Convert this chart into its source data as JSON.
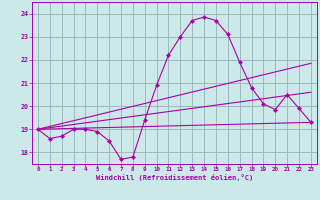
{
  "xlabel": "Windchill (Refroidissement éolien,°C)",
  "background_color": "#cce8e8",
  "line_color": "#aa00aa",
  "grid_color": "#99bbbb",
  "xlim": [
    -0.5,
    23.5
  ],
  "ylim": [
    17.5,
    24.5
  ],
  "xticks": [
    0,
    1,
    2,
    3,
    4,
    5,
    6,
    7,
    8,
    9,
    10,
    11,
    12,
    13,
    14,
    15,
    16,
    17,
    18,
    19,
    20,
    21,
    22,
    23
  ],
  "yticks": [
    18,
    19,
    20,
    21,
    22,
    23,
    24
  ],
  "series": [
    {
      "x": [
        0,
        1,
        2,
        3,
        4,
        5,
        6,
        7,
        8,
        9,
        10,
        11,
        12,
        13,
        14,
        15,
        16,
        17,
        18,
        19,
        20,
        21,
        22,
        23
      ],
      "y": [
        19.0,
        18.6,
        18.7,
        19.0,
        19.0,
        18.9,
        18.5,
        17.7,
        17.8,
        19.4,
        20.9,
        22.2,
        23.0,
        23.7,
        23.85,
        23.7,
        23.1,
        21.9,
        20.8,
        20.1,
        19.85,
        20.5,
        19.9,
        19.3
      ]
    },
    {
      "x": [
        0,
        23
      ],
      "y": [
        19.0,
        21.85
      ]
    },
    {
      "x": [
        0,
        23
      ],
      "y": [
        19.0,
        20.6
      ]
    },
    {
      "x": [
        0,
        23
      ],
      "y": [
        19.0,
        19.3
      ]
    }
  ],
  "marker_x": [
    0,
    1,
    2,
    3,
    4,
    5,
    6,
    7,
    8,
    9,
    10,
    11,
    12,
    13,
    14,
    15,
    16,
    17,
    18,
    19,
    20,
    21,
    22,
    23
  ],
  "marker_y": [
    19.0,
    18.6,
    18.7,
    19.0,
    19.0,
    18.9,
    18.5,
    17.7,
    17.8,
    19.4,
    20.9,
    22.2,
    23.0,
    23.7,
    23.85,
    23.7,
    23.1,
    21.9,
    20.8,
    20.1,
    19.85,
    20.5,
    19.9,
    19.3
  ]
}
